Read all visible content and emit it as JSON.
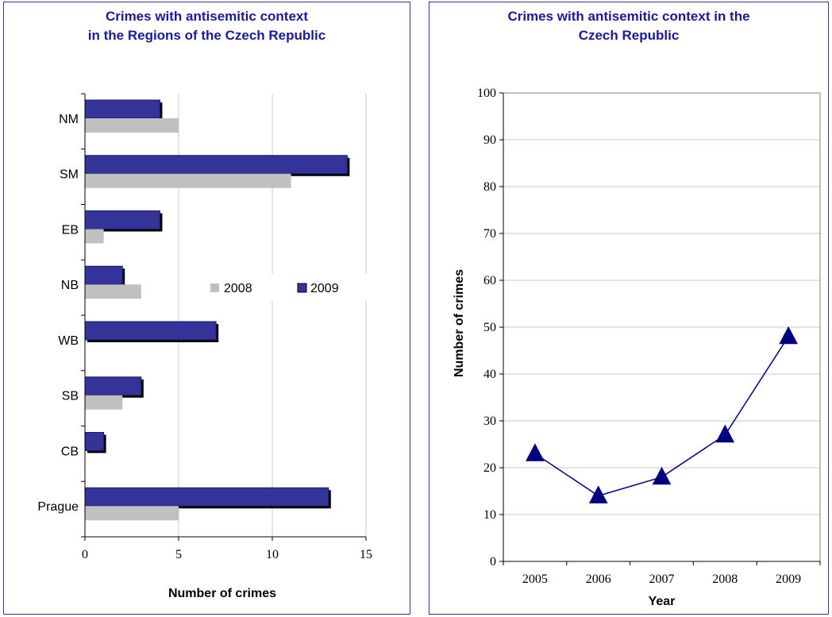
{
  "chart_data": [
    {
      "type": "bar",
      "orientation": "horizontal",
      "title_line1": "Crimes  with antisemitic context",
      "title_line2": "in the Regions of the Czech Republic",
      "xlabel": "Number of crimes",
      "ylabel": "",
      "categories": [
        "NM",
        "SM",
        "EB",
        "NB",
        "WB",
        "SB",
        "CB",
        "Prague"
      ],
      "series": [
        {
          "name": "2008",
          "values": [
            5,
            11,
            1,
            3,
            0,
            2,
            0,
            5
          ],
          "color": "#c0c0c0"
        },
        {
          "name": "2009",
          "values": [
            4,
            14,
            4,
            2,
            7,
            3,
            1,
            13
          ],
          "color": "#333399"
        }
      ],
      "xlim": [
        0,
        15
      ],
      "xticks": [
        "0",
        "5",
        "10",
        "15"
      ],
      "grid": "vertical",
      "legend": "center-right"
    },
    {
      "type": "line",
      "title_line1": "Crimes  with antisemitic context in the",
      "title_line2": "Czech Republic",
      "xlabel": "Year",
      "ylabel": "Number of crimes",
      "x": [
        "2005",
        "2006",
        "2007",
        "2008",
        "2009"
      ],
      "y": [
        23,
        14,
        18,
        27,
        48
      ],
      "ylim": [
        0,
        100
      ],
      "yticks": [
        "0",
        "10",
        "20",
        "30",
        "40",
        "50",
        "60",
        "70",
        "80",
        "90",
        "100"
      ],
      "marker": "triangle",
      "color": "#000080",
      "grid": "horizontal"
    }
  ]
}
